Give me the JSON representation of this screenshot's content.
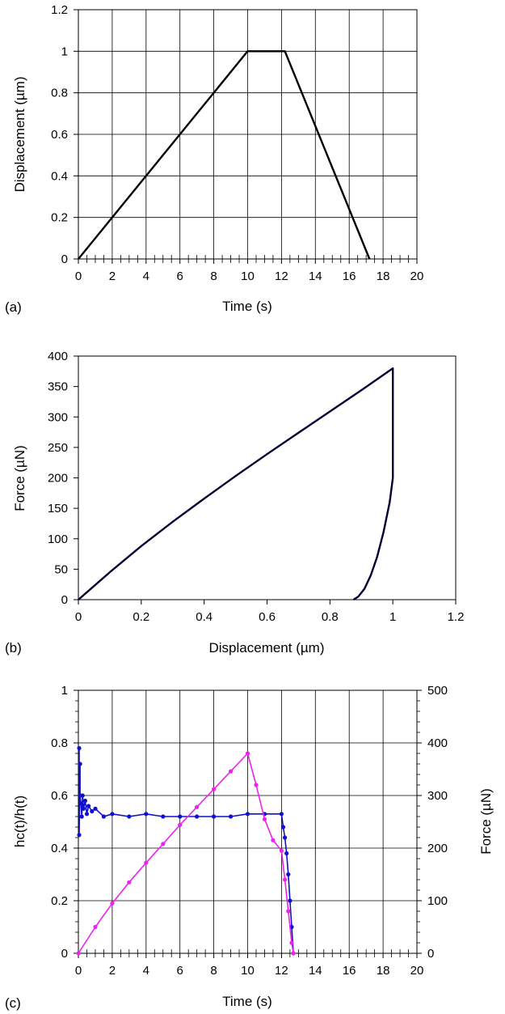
{
  "chart_data": [
    {
      "panel_label": "(a)",
      "type": "line",
      "xlabel": "Time (s)",
      "ylabel": "Displacement (µm)",
      "xlim": [
        0,
        20
      ],
      "ylim": [
        0,
        1.2
      ],
      "xticks": [
        "0",
        "2",
        "4",
        "6",
        "8",
        "10",
        "12",
        "14",
        "16",
        "18",
        "20"
      ],
      "yticks": [
        "0",
        "0.2",
        "0.4",
        "0.6",
        "0.8",
        "1",
        "1.2"
      ],
      "grid": true,
      "series": [
        {
          "color": "#000000",
          "x": [
            0,
            10,
            12.2,
            17.2
          ],
          "y": [
            0,
            1,
            1,
            0
          ]
        }
      ]
    },
    {
      "panel_label": "(b)",
      "type": "line",
      "xlabel": "Displacement (µm)",
      "ylabel": "Force (µN)",
      "xlim": [
        0,
        1.2
      ],
      "ylim": [
        0,
        400
      ],
      "xticks": [
        "0",
        "0.2",
        "0.4",
        "0.6",
        "0.8",
        "1",
        "1.2"
      ],
      "yticks": [
        "0",
        "50",
        "100",
        "150",
        "200",
        "250",
        "300",
        "350",
        "400"
      ],
      "grid": false,
      "series": [
        {
          "color": "#000033",
          "x": [
            0,
            0.1,
            0.2,
            0.3,
            0.4,
            0.5,
            0.6,
            0.7,
            0.8,
            0.9,
            1.0,
            1.0,
            1.0,
            1.0,
            0.99,
            0.97,
            0.95,
            0.93,
            0.91,
            0.89,
            0.875
          ],
          "y": [
            0,
            45,
            88,
            128,
            166,
            203,
            239,
            274,
            309,
            344,
            380,
            300,
            240,
            200,
            160,
            110,
            70,
            40,
            18,
            5,
            0
          ]
        }
      ]
    },
    {
      "panel_label": "(c)",
      "type": "scatter",
      "xlabel": "Time (s)",
      "ylabel": "hc(t)/h(t)",
      "y2label": "Force (µN)",
      "xlim": [
        0,
        20
      ],
      "ylim": [
        0,
        1
      ],
      "y2lim": [
        0,
        500
      ],
      "xticks": [
        "0",
        "2",
        "4",
        "6",
        "8",
        "10",
        "12",
        "14",
        "16",
        "18",
        "20"
      ],
      "yticks": [
        "0",
        "0.2",
        "0.4",
        "0.6",
        "0.8",
        "1"
      ],
      "y2ticks": [
        "0",
        "100",
        "200",
        "300",
        "400",
        "500"
      ],
      "grid": true,
      "series": [
        {
          "color": "#1010cc",
          "axis": "left",
          "x": [
            0.05,
            0.05,
            0.1,
            0.1,
            0.15,
            0.2,
            0.25,
            0.3,
            0.4,
            0.5,
            0.6,
            0.8,
            1.0,
            1.5,
            2,
            3,
            4,
            5,
            6,
            7,
            8,
            9,
            10,
            11,
            12,
            12.1,
            12.2,
            12.3,
            12.4,
            12.5,
            12.6,
            12.7
          ],
          "y": [
            0.78,
            0.45,
            0.72,
            0.6,
            0.57,
            0.52,
            0.6,
            0.55,
            0.58,
            0.53,
            0.56,
            0.54,
            0.55,
            0.52,
            0.53,
            0.52,
            0.53,
            0.52,
            0.52,
            0.52,
            0.52,
            0.52,
            0.53,
            0.53,
            0.53,
            0.48,
            0.44,
            0.38,
            0.3,
            0.2,
            0.1,
            0.0
          ]
        },
        {
          "color": "#ee22ee",
          "axis": "right",
          "x": [
            0,
            1,
            2,
            3,
            4,
            5,
            6,
            7,
            8,
            9,
            10,
            10.5,
            11,
            11.5,
            12,
            12.2,
            12.4,
            12.6,
            12.7
          ],
          "y": [
            0,
            50,
            95,
            135,
            172,
            208,
            244,
            278,
            312,
            346,
            380,
            320,
            255,
            215,
            195,
            140,
            80,
            20,
            0
          ]
        }
      ]
    }
  ]
}
